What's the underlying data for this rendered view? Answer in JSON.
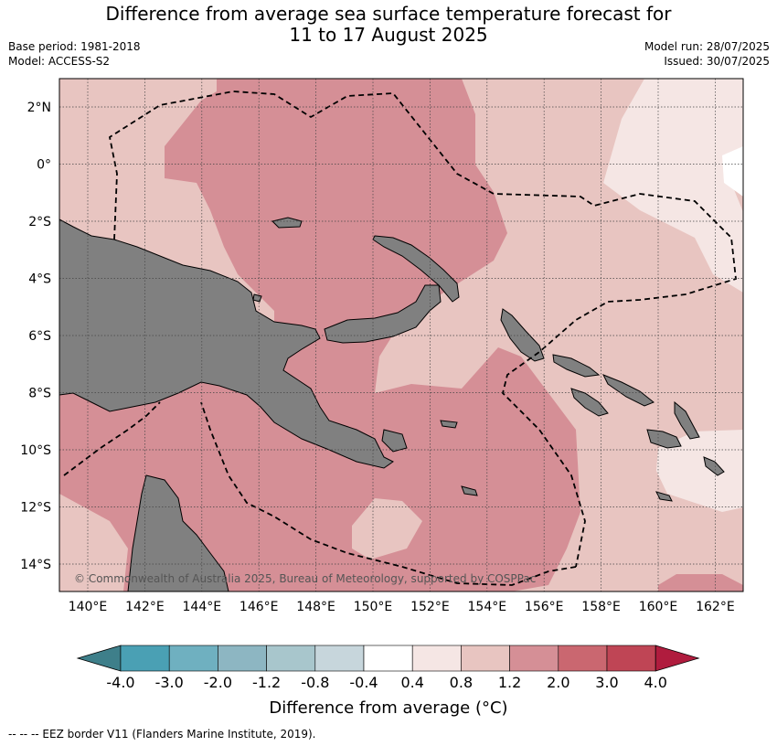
{
  "title_line1": "Difference from average sea surface temperature forecast for",
  "title_line2": "11 to 17 August 2025",
  "base_period": "Base period: 1981-2018",
  "model": "Model: ACCESS-S2",
  "model_run": "Model run: 28/07/2025",
  "issued": "Issued: 30/07/2025",
  "copyright": "© Commonwealth of Australia 2025, Bureau of Meteorology, supported by COSPPac",
  "lat_labels": [
    "2°N",
    "0°",
    "2°S",
    "4°S",
    "6°S",
    "8°S",
    "10°S",
    "12°S",
    "14°S"
  ],
  "lon_labels": [
    "140°E",
    "142°E",
    "144°E",
    "146°E",
    "148°E",
    "150°E",
    "152°E",
    "154°E",
    "156°E",
    "158°E",
    "160°E",
    "162°E"
  ],
  "colorbar": {
    "title": "Difference from average (°C)",
    "labels": [
      "-4.0",
      "-3.0",
      "-2.0",
      "-1.2",
      "-0.8",
      "-0.4",
      "0.4",
      "0.8",
      "1.2",
      "2.0",
      "3.0",
      "4.0"
    ],
    "colors": [
      "#3e7f8a",
      "#4aa0b4",
      "#6fb0c0",
      "#8db6c2",
      "#a8c6cc",
      "#c7d6dc",
      "#ffffff",
      "#f5e6e4",
      "#e8c5c1",
      "#d58f96",
      "#ca6770",
      "#bf4555",
      "#b01c3e"
    ]
  },
  "footer": "-- -- -- EEZ border V11 (Flanders Marine Institute, 2019).",
  "colors": {
    "land": "#808080",
    "anomaly_0_8_to_1_2": "#e8c5c1",
    "anomaly_1_2_to_2_0": "#d58f96",
    "anomaly_0_4_to_0_8": "#f5e6e4"
  }
}
